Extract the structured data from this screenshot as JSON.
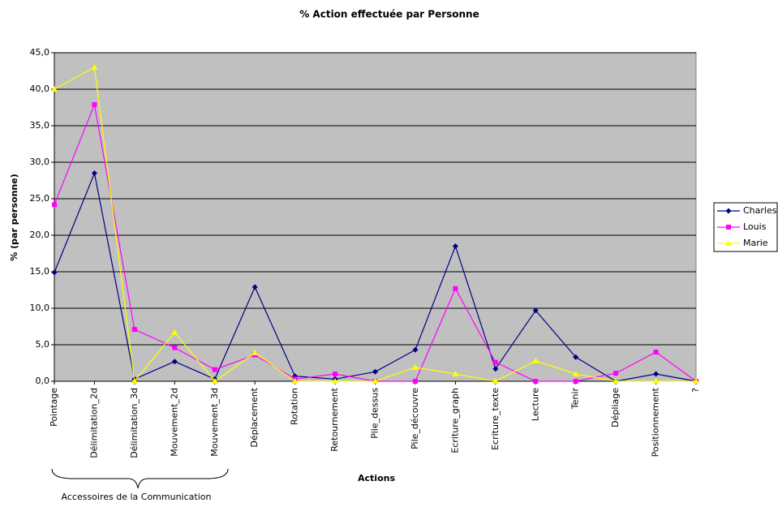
{
  "chart_data": {
    "type": "line",
    "title": "% Action effectuée par Personne",
    "xlabel": "Actions",
    "ylabel": "% (par personne)",
    "annotation": "Accessoires de la Communication",
    "categories": [
      "Pointage",
      "Délimitation_2d",
      "Délimitation_3d",
      "Mouvement_2d",
      "Mouvement_3d",
      "Déplacement",
      "Rotation",
      "Retournement",
      "Pile_dessus",
      "Pile_découvre",
      "Ecriture_graph",
      "Ecriture_texte",
      "Lecture",
      "Tenir",
      "Dépliage",
      "Positionnement",
      "?"
    ],
    "series": [
      {
        "name": "Charles",
        "color": "#000080",
        "marker": "diamond",
        "values": [
          14.9,
          28.5,
          0.3,
          2.7,
          0.3,
          12.9,
          0.7,
          0.3,
          1.3,
          4.3,
          18.5,
          1.7,
          9.7,
          3.3,
          0,
          1.0,
          0
        ]
      },
      {
        "name": "Louis",
        "color": "#ff00ff",
        "marker": "square",
        "values": [
          24.2,
          37.9,
          7.1,
          4.6,
          1.6,
          3.6,
          0.3,
          1.0,
          0,
          0,
          12.7,
          2.6,
          0,
          0,
          1.1,
          4.0,
          0
        ]
      },
      {
        "name": "Marie",
        "color": "#ffff00",
        "marker": "triangle",
        "values": [
          40.0,
          43.0,
          0,
          6.7,
          0,
          3.9,
          0,
          0,
          0,
          1.9,
          1.0,
          0,
          2.8,
          1.0,
          0,
          0,
          0
        ]
      }
    ],
    "ylim": [
      0,
      45
    ],
    "yticks": [
      {
        "value": 0,
        "label": "0,0"
      },
      {
        "value": 5,
        "label": "5,0"
      },
      {
        "value": 10,
        "label": "10,0"
      },
      {
        "value": 15,
        "label": "15,0"
      },
      {
        "value": 20,
        "label": "20,0"
      },
      {
        "value": 25,
        "label": "25,0"
      },
      {
        "value": 30,
        "label": "30,0"
      },
      {
        "value": 35,
        "label": "35,0"
      },
      {
        "value": 40,
        "label": "40,0"
      },
      {
        "value": 45,
        "label": "45,0"
      }
    ],
    "grid": true,
    "legend": "right"
  }
}
